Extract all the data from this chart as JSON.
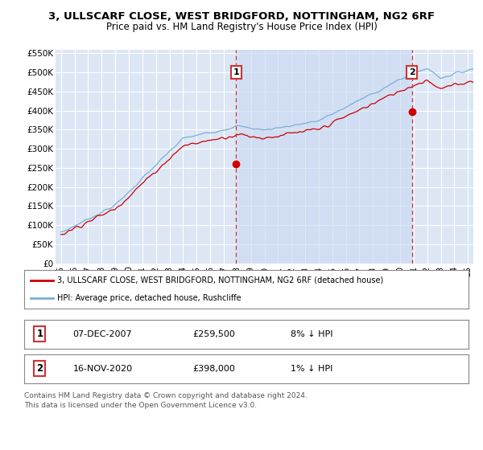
{
  "title_line1": "3, ULLSCARF CLOSE, WEST BRIDGFORD, NOTTINGHAM, NG2 6RF",
  "title_line2": "Price paid vs. HM Land Registry's House Price Index (HPI)",
  "ylim": [
    0,
    560000
  ],
  "yticks": [
    0,
    50000,
    100000,
    150000,
    200000,
    250000,
    300000,
    350000,
    400000,
    450000,
    500000,
    550000
  ],
  "ytick_labels": [
    "£0",
    "£50K",
    "£100K",
    "£150K",
    "£200K",
    "£250K",
    "£300K",
    "£350K",
    "£400K",
    "£450K",
    "£500K",
    "£550K"
  ],
  "xlim_start": 1994.6,
  "xlim_end": 2025.4,
  "xtick_years": [
    1995,
    1996,
    1997,
    1998,
    1999,
    2000,
    2001,
    2002,
    2003,
    2004,
    2005,
    2006,
    2007,
    2008,
    2009,
    2010,
    2011,
    2012,
    2013,
    2014,
    2015,
    2016,
    2017,
    2018,
    2019,
    2020,
    2021,
    2022,
    2023,
    2024,
    2025
  ],
  "bg_color": "#dce6f5",
  "shade_color": "#c8d8f0",
  "grid_color": "#ffffff",
  "fig_bg": "#ffffff",
  "sale1_date": 2007.92,
  "sale1_price": 259500,
  "sale1_label": "1",
  "sale2_date": 2020.88,
  "sale2_price": 398000,
  "sale2_label": "2",
  "red_line_color": "#cc0000",
  "blue_line_color": "#7bafd4",
  "vline_color": "#cc3333",
  "box_edge_color": "#cc3333",
  "legend_label1": "3, ULLSCARF CLOSE, WEST BRIDGFORD, NOTTINGHAM, NG2 6RF (detached house)",
  "legend_label2": "HPI: Average price, detached house, Rushcliffe",
  "footnote1": "Contains HM Land Registry data © Crown copyright and database right 2024.",
  "footnote2": "This data is licensed under the Open Government Licence v3.0.",
  "table_row1_num": "1",
  "table_row1_date": "07-DEC-2007",
  "table_row1_price": "£259,500",
  "table_row1_hpi": "8% ↓ HPI",
  "table_row2_num": "2",
  "table_row2_date": "16-NOV-2020",
  "table_row2_price": "£398,000",
  "table_row2_hpi": "1% ↓ HPI"
}
